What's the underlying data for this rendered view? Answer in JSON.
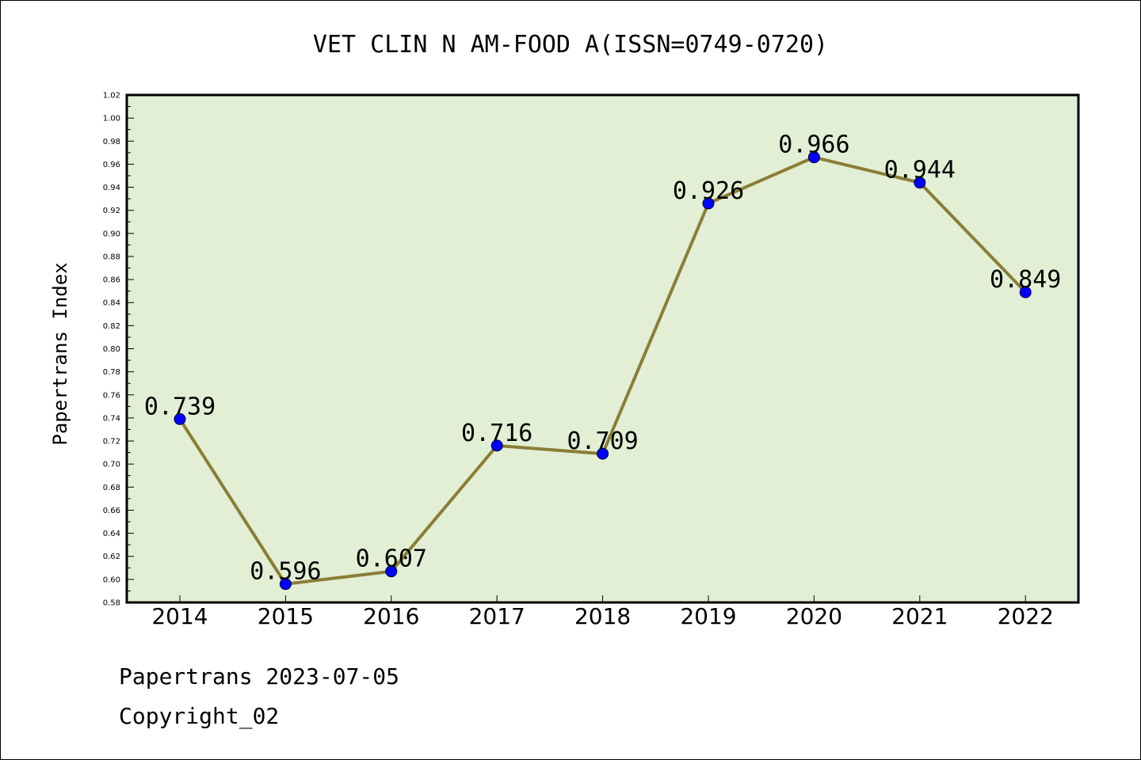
{
  "chart_data": {
    "type": "line",
    "title": "VET CLIN N AM-FOOD A(ISSN=0749-0720)",
    "ylabel": "Papertrans Index",
    "xlabel": "",
    "categories": [
      "2014",
      "2015",
      "2016",
      "2017",
      "2018",
      "2019",
      "2020",
      "2021",
      "2022"
    ],
    "values": [
      0.739,
      0.596,
      0.607,
      0.716,
      0.709,
      0.926,
      0.966,
      0.944,
      0.849
    ],
    "data_labels": [
      "0.739",
      "0.596",
      "0.607",
      "0.716",
      "0.709",
      "0.926",
      "0.966",
      "0.944",
      "0.849"
    ],
    "ylim": [
      0.58,
      1.02
    ],
    "yticks": [
      "0.58",
      "0.60",
      "0.62",
      "0.64",
      "0.66",
      "0.68",
      "0.70",
      "0.72",
      "0.74",
      "0.76",
      "0.78",
      "0.80",
      "0.82",
      "0.84",
      "0.86",
      "0.88",
      "0.90",
      "0.92",
      "0.94",
      "0.96",
      "0.98",
      "1.00",
      "1.02"
    ],
    "grid": false,
    "colors": {
      "plot_background": "#e2efd5",
      "line": "#8b7d36",
      "marker": "#0000ff"
    }
  },
  "footer": {
    "source": "Papertrans 2023-07-05",
    "copyright": "Copyright_02"
  }
}
